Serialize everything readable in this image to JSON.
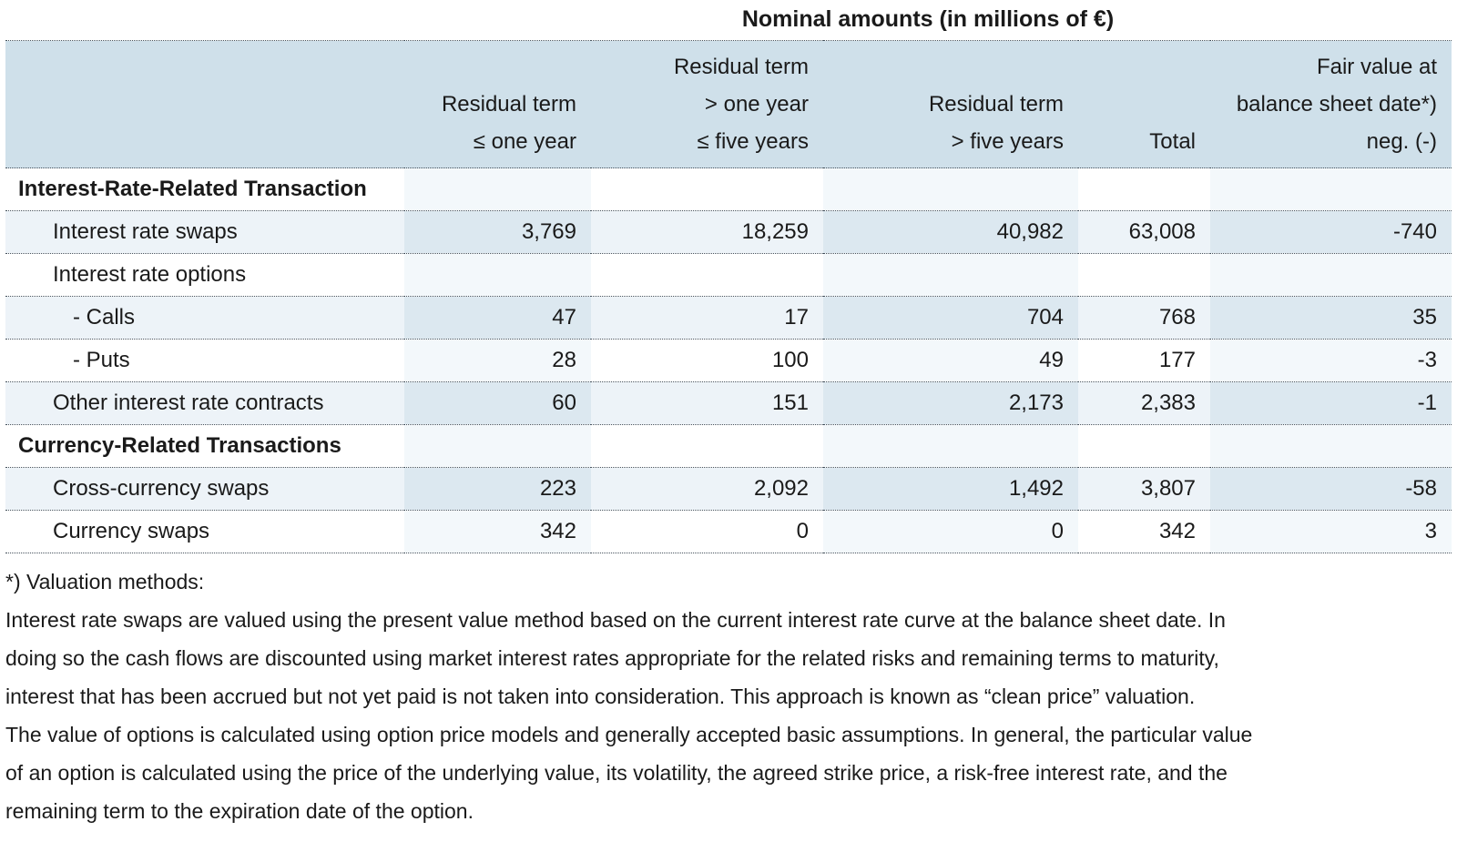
{
  "title": "Nominal amounts (in millions of €)",
  "table": {
    "columns": [
      {
        "label": ""
      },
      {
        "label": "Residual term\n≤ one year"
      },
      {
        "label": "Residual term\n> one year\n≤ five years"
      },
      {
        "label": "Residual term\n> five years"
      },
      {
        "label": "Total"
      },
      {
        "label": "Fair value at\nbalance sheet date*)\nneg. (-)"
      }
    ],
    "rows": [
      {
        "type": "section",
        "shaded": false,
        "indent": 0,
        "label": "Interest-Rate-Related Transaction",
        "values": [
          "",
          "",
          "",
          "",
          ""
        ]
      },
      {
        "type": "data",
        "shaded": true,
        "indent": 1,
        "label": "Interest rate swaps",
        "values": [
          "3,769",
          "18,259",
          "40,982",
          "63,008",
          "-740"
        ]
      },
      {
        "type": "data",
        "shaded": false,
        "indent": 1,
        "label": "Interest rate options",
        "values": [
          "",
          "",
          "",
          "",
          ""
        ]
      },
      {
        "type": "data",
        "shaded": true,
        "indent": 2,
        "label": "- Calls",
        "values": [
          "47",
          "17",
          "704",
          "768",
          "35"
        ]
      },
      {
        "type": "data",
        "shaded": false,
        "indent": 2,
        "label": "- Puts",
        "values": [
          "28",
          "100",
          "49",
          "177",
          "-3"
        ]
      },
      {
        "type": "data",
        "shaded": true,
        "indent": 1,
        "label": "Other interest rate contracts",
        "values": [
          "60",
          "151",
          "2,173",
          "2,383",
          "-1"
        ]
      },
      {
        "type": "section",
        "shaded": false,
        "indent": 0,
        "label": "Currency-Related Transactions",
        "values": [
          "",
          "",
          "",
          "",
          ""
        ]
      },
      {
        "type": "data",
        "shaded": true,
        "indent": 1,
        "label": "Cross-currency swaps",
        "values": [
          "223",
          "2,092",
          "1,492",
          "3,807",
          "-58"
        ]
      },
      {
        "type": "data",
        "shaded": false,
        "indent": 1,
        "label": "Currency swaps",
        "values": [
          "342",
          "0",
          "0",
          "342",
          "3"
        ]
      }
    ]
  },
  "footnote": {
    "lines": [
      "*) Valuation methods:",
      "Interest rate swaps are valued using the present value method based on the current interest rate curve at the balance sheet date. In",
      "doing so the cash flows are discounted using market interest rates appropriate for the related risks and remaining terms to maturity,",
      "interest that has been accrued but not yet paid is not taken into consideration. This approach is known as “clean price” valuation.",
      "The value of options is calculated using option price models and generally accepted basic assumptions. In general, the particular value",
      "of an option is calculated using the price of the underlying value, its volatility, the agreed strike price, a risk-free interest rate, and the",
      "remaining term to the expiration date of the option."
    ]
  },
  "colors": {
    "header_bg": "#cfe0ea",
    "row_shaded": "#edf3f8",
    "row_shaded_tint": "#dce8f0",
    "row_plain_tint": "#f3f8fb",
    "dotted_line": "#46525c",
    "text": "#1a1a1a"
  }
}
